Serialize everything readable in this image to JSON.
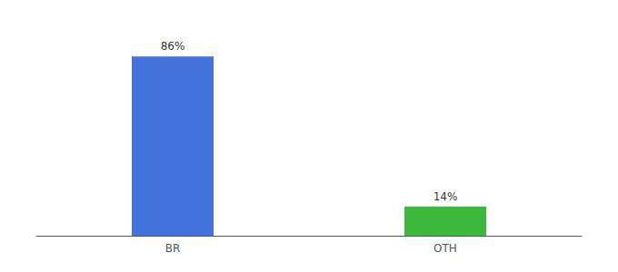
{
  "chart_data": {
    "type": "bar",
    "categories": [
      "BR",
      "OTH"
    ],
    "values": [
      86,
      14
    ],
    "value_labels": [
      "86%",
      "14%"
    ],
    "colors": [
      "#4472dd",
      "#3cb83c"
    ],
    "data_labels": true,
    "ylim": [
      0,
      100
    ],
    "tick_labels": "x",
    "grid": false
  }
}
